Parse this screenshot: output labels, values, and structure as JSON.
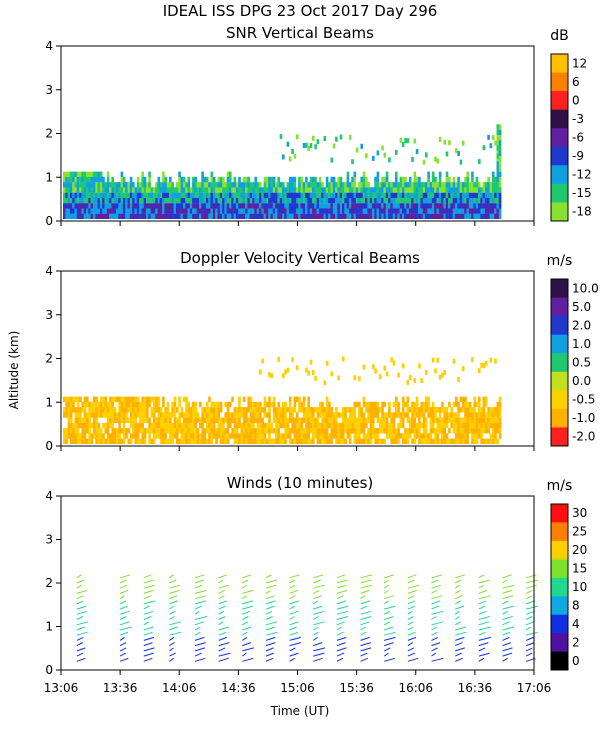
{
  "figure": {
    "title": "IDEAL ISS DPG  23 Oct 2017 Day 296",
    "ylabel": "Altitude (km)",
    "xlabel": "Time (UT)",
    "x_ticks": [
      "13:06",
      "13:36",
      "14:06",
      "14:36",
      "15:06",
      "15:36",
      "16:06",
      "16:36",
      "17:06"
    ]
  },
  "chart_data": [
    {
      "type": "heatmap",
      "title": "SNR Vertical Beams",
      "unit": "dB",
      "y_ticks": [
        "0",
        "1",
        "2",
        "3",
        "4"
      ],
      "ylim": [
        0,
        4
      ],
      "xlim": [
        "13:06",
        "17:06"
      ],
      "colorbar": {
        "labels": [
          "12",
          "6",
          "0",
          "-3",
          "-6",
          "-9",
          "-12",
          "-15",
          "-18"
        ],
        "colors": [
          "#ffc000",
          "#ff8000",
          "#ff2020",
          "#301048",
          "#6020a0",
          "#2038d0",
          "#10a0e0",
          "#20c870",
          "#88e030"
        ]
      }
    },
    {
      "type": "heatmap",
      "title": "Doppler Velocity Vertical Beams",
      "unit": "m/s",
      "y_ticks": [
        "0",
        "1",
        "2",
        "3",
        "4"
      ],
      "ylim": [
        0,
        4
      ],
      "xlim": [
        "13:06",
        "17:06"
      ],
      "colorbar": {
        "labels": [
          "10.0",
          "5.0",
          "2.0",
          "1.0",
          "0.5",
          "0.0",
          "-0.5",
          "-1.0",
          "-2.0"
        ],
        "colors": [
          "#301048",
          "#6020a0",
          "#2038d0",
          "#10a0e0",
          "#20c870",
          "#c0e020",
          "#ffd000",
          "#ffb000",
          "#ff2020"
        ]
      }
    },
    {
      "type": "scatter",
      "title": "Winds (10 minutes)",
      "unit": "m/s",
      "y_ticks": [
        "0",
        "1",
        "2",
        "3",
        "4"
      ],
      "ylim": [
        0,
        4
      ],
      "xlim": [
        "13:06",
        "17:06"
      ],
      "colorbar": {
        "labels": [
          "30",
          "25",
          "20",
          "15",
          "10",
          "8",
          "4",
          "2",
          "0"
        ],
        "colors": [
          "#ff1010",
          "#ff8000",
          "#ffd000",
          "#80e030",
          "#20d890",
          "#10a8e0",
          "#1030e0",
          "#5010a0",
          "#000000"
        ]
      },
      "profile_times_min": [
        8,
        30,
        42,
        55,
        68,
        80,
        92,
        104,
        116,
        128,
        140,
        152,
        164,
        176,
        188,
        200,
        212,
        224,
        236
      ]
    }
  ]
}
